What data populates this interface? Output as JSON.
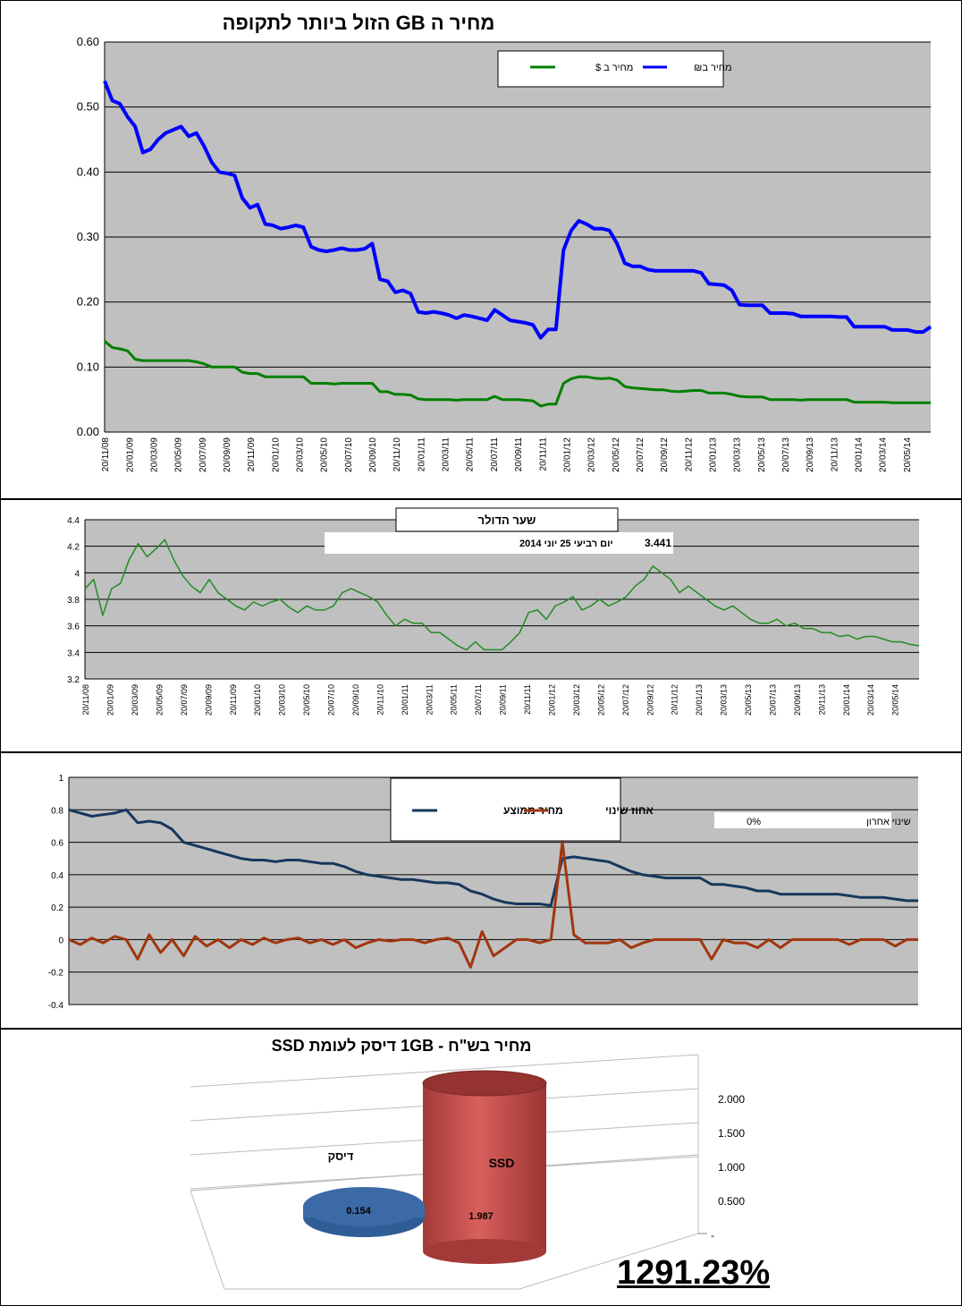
{
  "colors": {
    "plot_bg": "#c0c0c0",
    "blue": "#0000ff",
    "green": "#008000",
    "green2": "#228b22",
    "navy": "#17375e",
    "rust": "#a0360f",
    "red_cyl": "#c0504d",
    "blue_cyl": "#4f81bd"
  },
  "x_ticks": [
    "20/11/08",
    "20/01/09",
    "20/03/09",
    "20/05/09",
    "20/07/09",
    "20/09/09",
    "20/11/09",
    "20/01/10",
    "20/03/10",
    "20/05/10",
    "20/07/10",
    "20/09/10",
    "20/11/10",
    "20/01/11",
    "20/03/11",
    "20/05/11",
    "20/07/11",
    "20/09/11",
    "20/11/11",
    "20/01/12",
    "20/03/12",
    "20/05/12",
    "20/07/12",
    "20/09/12",
    "20/11/12",
    "20/01/13",
    "20/03/13",
    "20/05/13",
    "20/07/13",
    "20/09/13",
    "20/11/13",
    "20/01/14",
    "20/03/14",
    "20/05/14"
  ],
  "chart_data": [
    {
      "type": "line",
      "title": "מחיר ה GB הזול ביותר לתקופה",
      "ylim": [
        0,
        0.6
      ],
      "yticks": [
        "0.00",
        "0.10",
        "0.20",
        "0.30",
        "0.40",
        "0.50",
        "0.60"
      ],
      "grid": true,
      "legend": "top-right",
      "series": [
        {
          "name": "מחיר ב₪",
          "color": "#0000ff",
          "values": [
            0.54,
            0.51,
            0.505,
            0.485,
            0.47,
            0.43,
            0.435,
            0.45,
            0.46,
            0.465,
            0.47,
            0.455,
            0.46,
            0.44,
            0.415,
            0.4,
            0.398,
            0.395,
            0.36,
            0.345,
            0.35,
            0.32,
            0.318,
            0.313,
            0.315,
            0.318,
            0.315,
            0.285,
            0.28,
            0.278,
            0.28,
            0.283,
            0.28,
            0.28,
            0.282,
            0.29,
            0.235,
            0.232,
            0.215,
            0.218,
            0.213,
            0.185,
            0.183,
            0.185,
            0.183,
            0.18,
            0.175,
            0.18,
            0.178,
            0.175,
            0.172,
            0.188,
            0.18,
            0.172,
            0.17,
            0.168,
            0.165,
            0.145,
            0.158,
            0.158,
            0.28,
            0.31,
            0.325,
            0.32,
            0.313,
            0.313,
            0.31,
            0.29,
            0.26,
            0.255,
            0.255,
            0.25,
            0.248,
            0.248,
            0.248,
            0.248,
            0.248,
            0.248,
            0.245,
            0.228,
            0.227,
            0.226,
            0.218,
            0.196,
            0.195,
            0.195,
            0.195,
            0.183,
            0.183,
            0.183,
            0.182,
            0.178,
            0.178,
            0.178,
            0.178,
            0.178,
            0.177,
            0.177,
            0.162,
            0.162,
            0.162,
            0.162,
            0.162,
            0.157,
            0.157,
            0.157,
            0.154,
            0.154,
            0.162
          ]
        },
        {
          "name": "מחיר ב $",
          "color": "#008000",
          "values": [
            0.14,
            0.13,
            0.128,
            0.125,
            0.112,
            0.11,
            0.11,
            0.11,
            0.11,
            0.11,
            0.11,
            0.11,
            0.108,
            0.105,
            0.1,
            0.1,
            0.1,
            0.1,
            0.092,
            0.09,
            0.09,
            0.085,
            0.085,
            0.085,
            0.085,
            0.085,
            0.085,
            0.075,
            0.075,
            0.075,
            0.074,
            0.075,
            0.075,
            0.075,
            0.075,
            0.075,
            0.062,
            0.062,
            0.058,
            0.058,
            0.057,
            0.051,
            0.05,
            0.05,
            0.05,
            0.05,
            0.049,
            0.05,
            0.05,
            0.05,
            0.05,
            0.055,
            0.05,
            0.05,
            0.05,
            0.049,
            0.048,
            0.04,
            0.043,
            0.043,
            0.075,
            0.082,
            0.085,
            0.085,
            0.083,
            0.082,
            0.083,
            0.08,
            0.07,
            0.068,
            0.067,
            0.066,
            0.065,
            0.065,
            0.063,
            0.062,
            0.063,
            0.064,
            0.064,
            0.06,
            0.06,
            0.06,
            0.058,
            0.055,
            0.054,
            0.054,
            0.054,
            0.05,
            0.05,
            0.05,
            0.05,
            0.049,
            0.05,
            0.05,
            0.05,
            0.05,
            0.05,
            0.05,
            0.046,
            0.046,
            0.046,
            0.046,
            0.046,
            0.045,
            0.045,
            0.045,
            0.045,
            0.045,
            0.045
          ]
        }
      ]
    },
    {
      "type": "line",
      "title": "שער הדולר",
      "info_label": "יום רביעי 25 יוני 2014",
      "info_value": "3.441",
      "ylim": [
        3.2,
        4.4
      ],
      "yticks": [
        "3.2",
        "3.4",
        "3.6",
        "3.8",
        "4",
        "4.2",
        "4.4"
      ],
      "grid": true,
      "series": [
        {
          "name": "",
          "color": "#228b22",
          "values": [
            3.88,
            3.95,
            3.68,
            3.88,
            3.92,
            4.1,
            4.22,
            4.12,
            4.18,
            4.25,
            4.1,
            3.98,
            3.9,
            3.85,
            3.95,
            3.85,
            3.8,
            3.75,
            3.72,
            3.78,
            3.75,
            3.78,
            3.8,
            3.74,
            3.7,
            3.75,
            3.72,
            3.72,
            3.75,
            3.85,
            3.88,
            3.85,
            3.82,
            3.78,
            3.68,
            3.6,
            3.65,
            3.62,
            3.62,
            3.55,
            3.55,
            3.5,
            3.45,
            3.42,
            3.48,
            3.42,
            3.42,
            3.42,
            3.48,
            3.55,
            3.7,
            3.72,
            3.65,
            3.75,
            3.78,
            3.82,
            3.72,
            3.75,
            3.8,
            3.75,
            3.78,
            3.82,
            3.9,
            3.95,
            4.05,
            4.0,
            3.95,
            3.85,
            3.9,
            3.85,
            3.8,
            3.75,
            3.72,
            3.75,
            3.7,
            3.65,
            3.62,
            3.62,
            3.65,
            3.6,
            3.62,
            3.58,
            3.58,
            3.55,
            3.55,
            3.52,
            3.53,
            3.5,
            3.52,
            3.52,
            3.5,
            3.48,
            3.48,
            3.46,
            3.45
          ]
        }
      ]
    },
    {
      "type": "line",
      "ylim": [
        -0.4,
        1.0
      ],
      "yticks": [
        "-0.4",
        "-0.2",
        "0",
        "0.2",
        "0.4",
        "0.6",
        "0.8",
        "1"
      ],
      "grid": true,
      "legend": "top-center",
      "info_label": "שינוי אחרון",
      "info_value": "0%",
      "series": [
        {
          "name": "מחיר ממוצע",
          "color": "#17375e",
          "values": [
            0.8,
            0.78,
            0.76,
            0.77,
            0.78,
            0.8,
            0.72,
            0.73,
            0.72,
            0.68,
            0.6,
            0.58,
            0.56,
            0.54,
            0.52,
            0.5,
            0.49,
            0.49,
            0.48,
            0.49,
            0.49,
            0.48,
            0.47,
            0.47,
            0.45,
            0.42,
            0.4,
            0.39,
            0.38,
            0.37,
            0.37,
            0.36,
            0.35,
            0.35,
            0.34,
            0.3,
            0.28,
            0.25,
            0.23,
            0.22,
            0.22,
            0.22,
            0.21,
            0.5,
            0.51,
            0.5,
            0.49,
            0.48,
            0.45,
            0.42,
            0.4,
            0.39,
            0.38,
            0.38,
            0.38,
            0.38,
            0.34,
            0.34,
            0.33,
            0.32,
            0.3,
            0.3,
            0.28,
            0.28,
            0.28,
            0.28,
            0.28,
            0.28,
            0.27,
            0.26,
            0.26,
            0.26,
            0.25,
            0.24,
            0.24
          ]
        },
        {
          "name": "אחוז שינוי",
          "color": "#a0360f",
          "values": [
            0,
            -0.03,
            0.01,
            -0.02,
            0.02,
            0,
            -0.12,
            0.03,
            -0.08,
            0,
            -0.1,
            0.02,
            -0.04,
            0,
            -0.05,
            0,
            -0.03,
            0.01,
            -0.02,
            0,
            0.01,
            -0.02,
            0,
            -0.03,
            0,
            -0.05,
            -0.02,
            0,
            -0.01,
            0,
            0,
            -0.02,
            0,
            0.01,
            -0.02,
            -0.17,
            0.05,
            -0.1,
            -0.05,
            0,
            0,
            -0.02,
            0,
            0.6,
            0.03,
            -0.02,
            -0.02,
            -0.02,
            0,
            -0.05,
            -0.02,
            0,
            0,
            0,
            0,
            0,
            -0.12,
            0,
            -0.02,
            -0.02,
            -0.05,
            0,
            -0.05,
            0,
            0,
            0,
            0,
            0,
            -0.03,
            0,
            0,
            0,
            -0.04,
            0,
            0
          ]
        }
      ]
    },
    {
      "type": "bar",
      "title": "מחיר בש\"ח - 1GB דיסק לעומת SSD",
      "categories": [
        "דיסק",
        "SSD"
      ],
      "values": [
        0.154,
        1.987
      ],
      "value_labels": [
        "0.154",
        "1.987"
      ],
      "yticks": [
        "-",
        "0.500",
        "1.000",
        "1.500",
        "2.000"
      ],
      "ylim": [
        0,
        2
      ],
      "ratio_text": "1291.23%"
    }
  ]
}
